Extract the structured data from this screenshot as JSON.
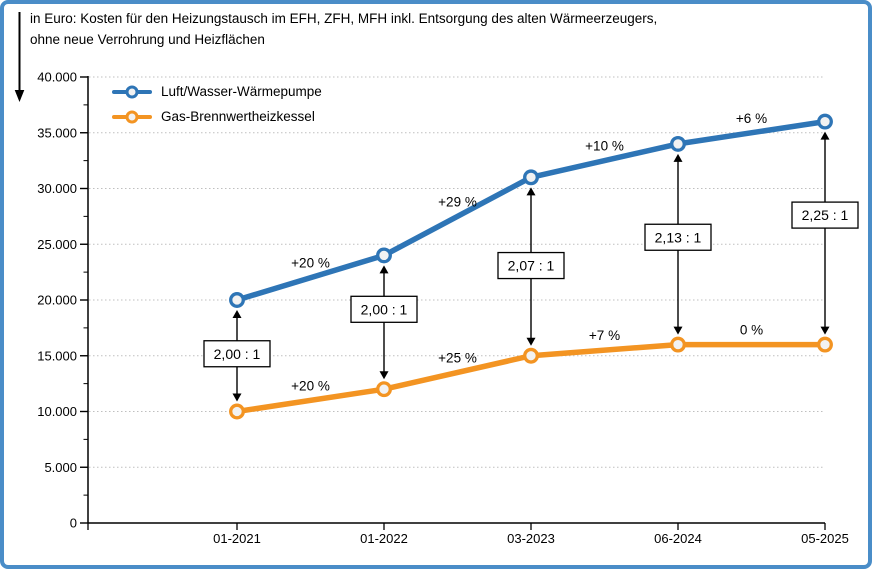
{
  "frame": {
    "border_color": "#4A8DC8",
    "background": "#FFFFFF"
  },
  "title": {
    "line1": "in Euro: Kosten für den Heizungstausch im EFH, ZFH, MFH inkl. Entsorgung des alten Wärmeerzeugers,",
    "line2": "ohne neue Verrohrung und Heizflächen"
  },
  "chart_data": {
    "type": "line",
    "categories": [
      "01-2021",
      "01-2022",
      "03-2023",
      "06-2024",
      "05-2025"
    ],
    "series": [
      {
        "name": "Luft/Wasser-Wärmepumpe",
        "color": "#2E75B6",
        "values": [
          20000,
          24000,
          31000,
          34000,
          36000
        ],
        "growth_labels": [
          "+20 %",
          "+29 %",
          "+10 %",
          "+6 %"
        ],
        "marker": "circle-open"
      },
      {
        "name": "Gas-Brennwertheizkessel",
        "color": "#F39422",
        "values": [
          10000,
          12000,
          15000,
          16000,
          16000
        ],
        "growth_labels": [
          "+20 %",
          "+25 %",
          "+7 %",
          "0 %"
        ],
        "marker": "circle-open"
      }
    ],
    "ratio_annotations": [
      "2,00 : 1",
      "2,00 : 1",
      "2,07 : 1",
      "2,13 : 1",
      "2,25 : 1"
    ],
    "ylim": [
      0,
      40000
    ],
    "y_major_step": 5000,
    "y_minor_step": 2500,
    "y_tick_labels": [
      "0",
      "5.000",
      "10.000",
      "15.000",
      "20.000",
      "25.000",
      "30.000",
      "35.000",
      "40.000"
    ],
    "grid": "horizontal-dotted",
    "gridline_color": "#BFBFBF",
    "axis_color": "#000000",
    "marker_fill": "#F2F2F2",
    "legend_position": "top-left"
  }
}
